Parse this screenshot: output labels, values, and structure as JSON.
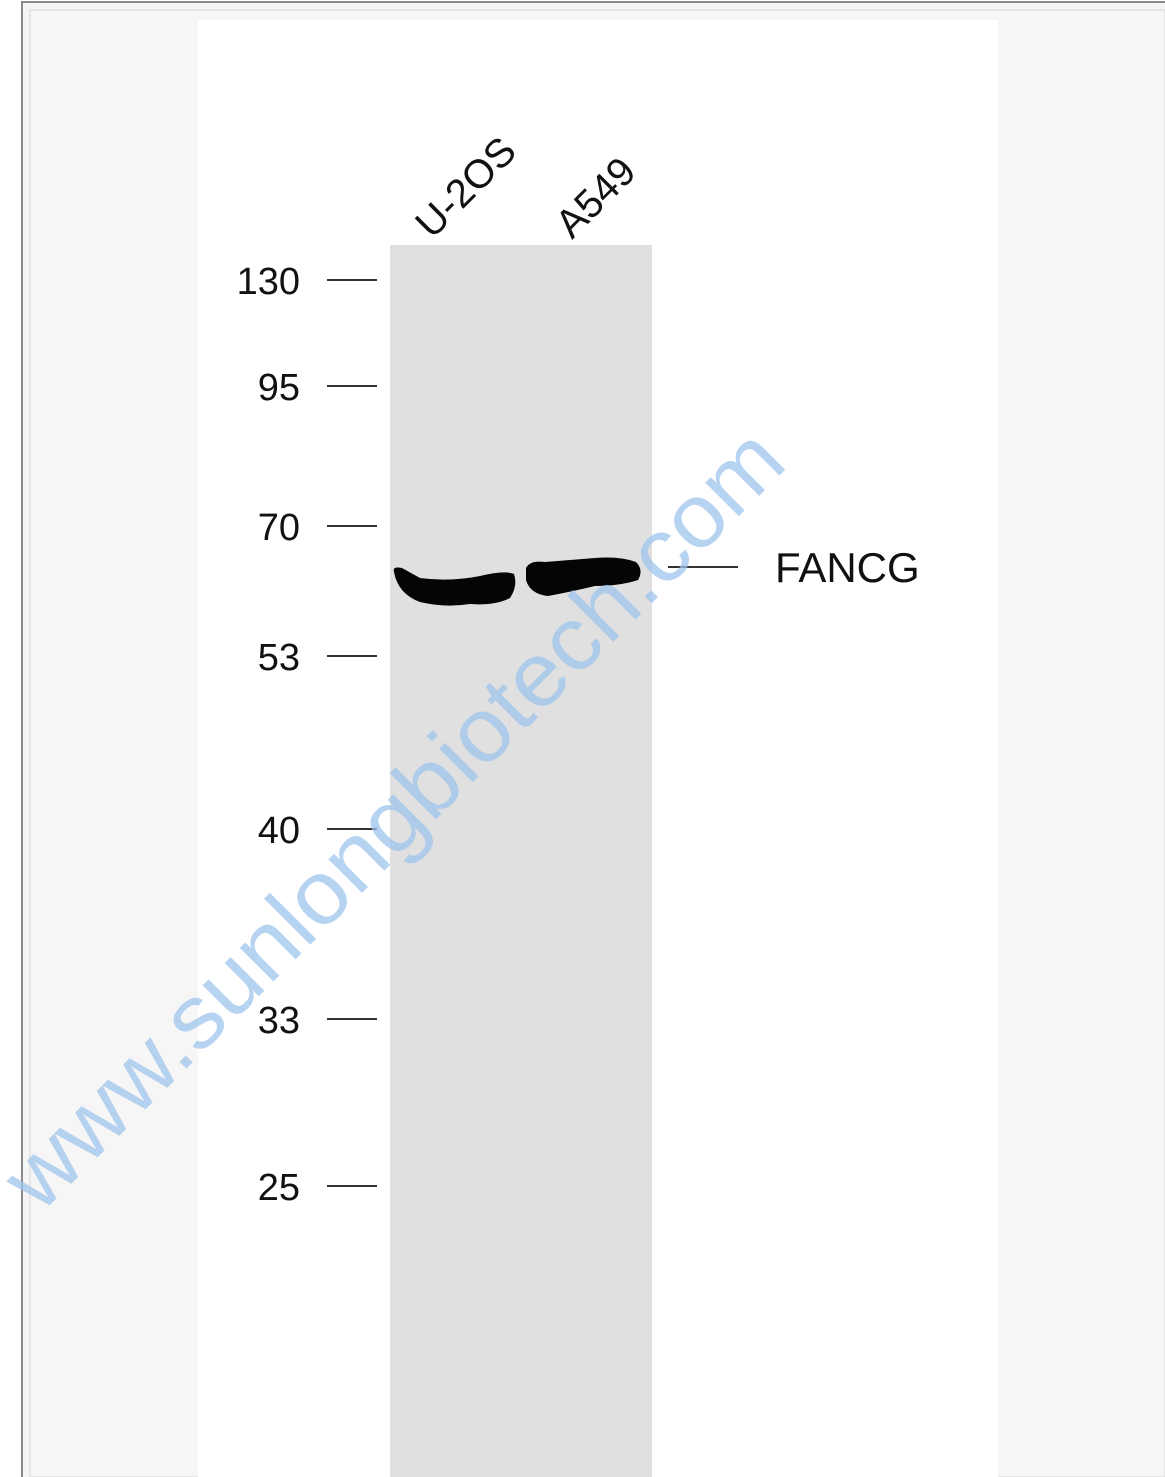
{
  "blot": {
    "lanes": [
      "U-2OS",
      "A549"
    ],
    "markers": [
      "130",
      "95",
      "70",
      "53",
      "40",
      "33",
      "25"
    ],
    "band_label": "FANCG",
    "watermark": "www.sunlongbiotech.com"
  }
}
